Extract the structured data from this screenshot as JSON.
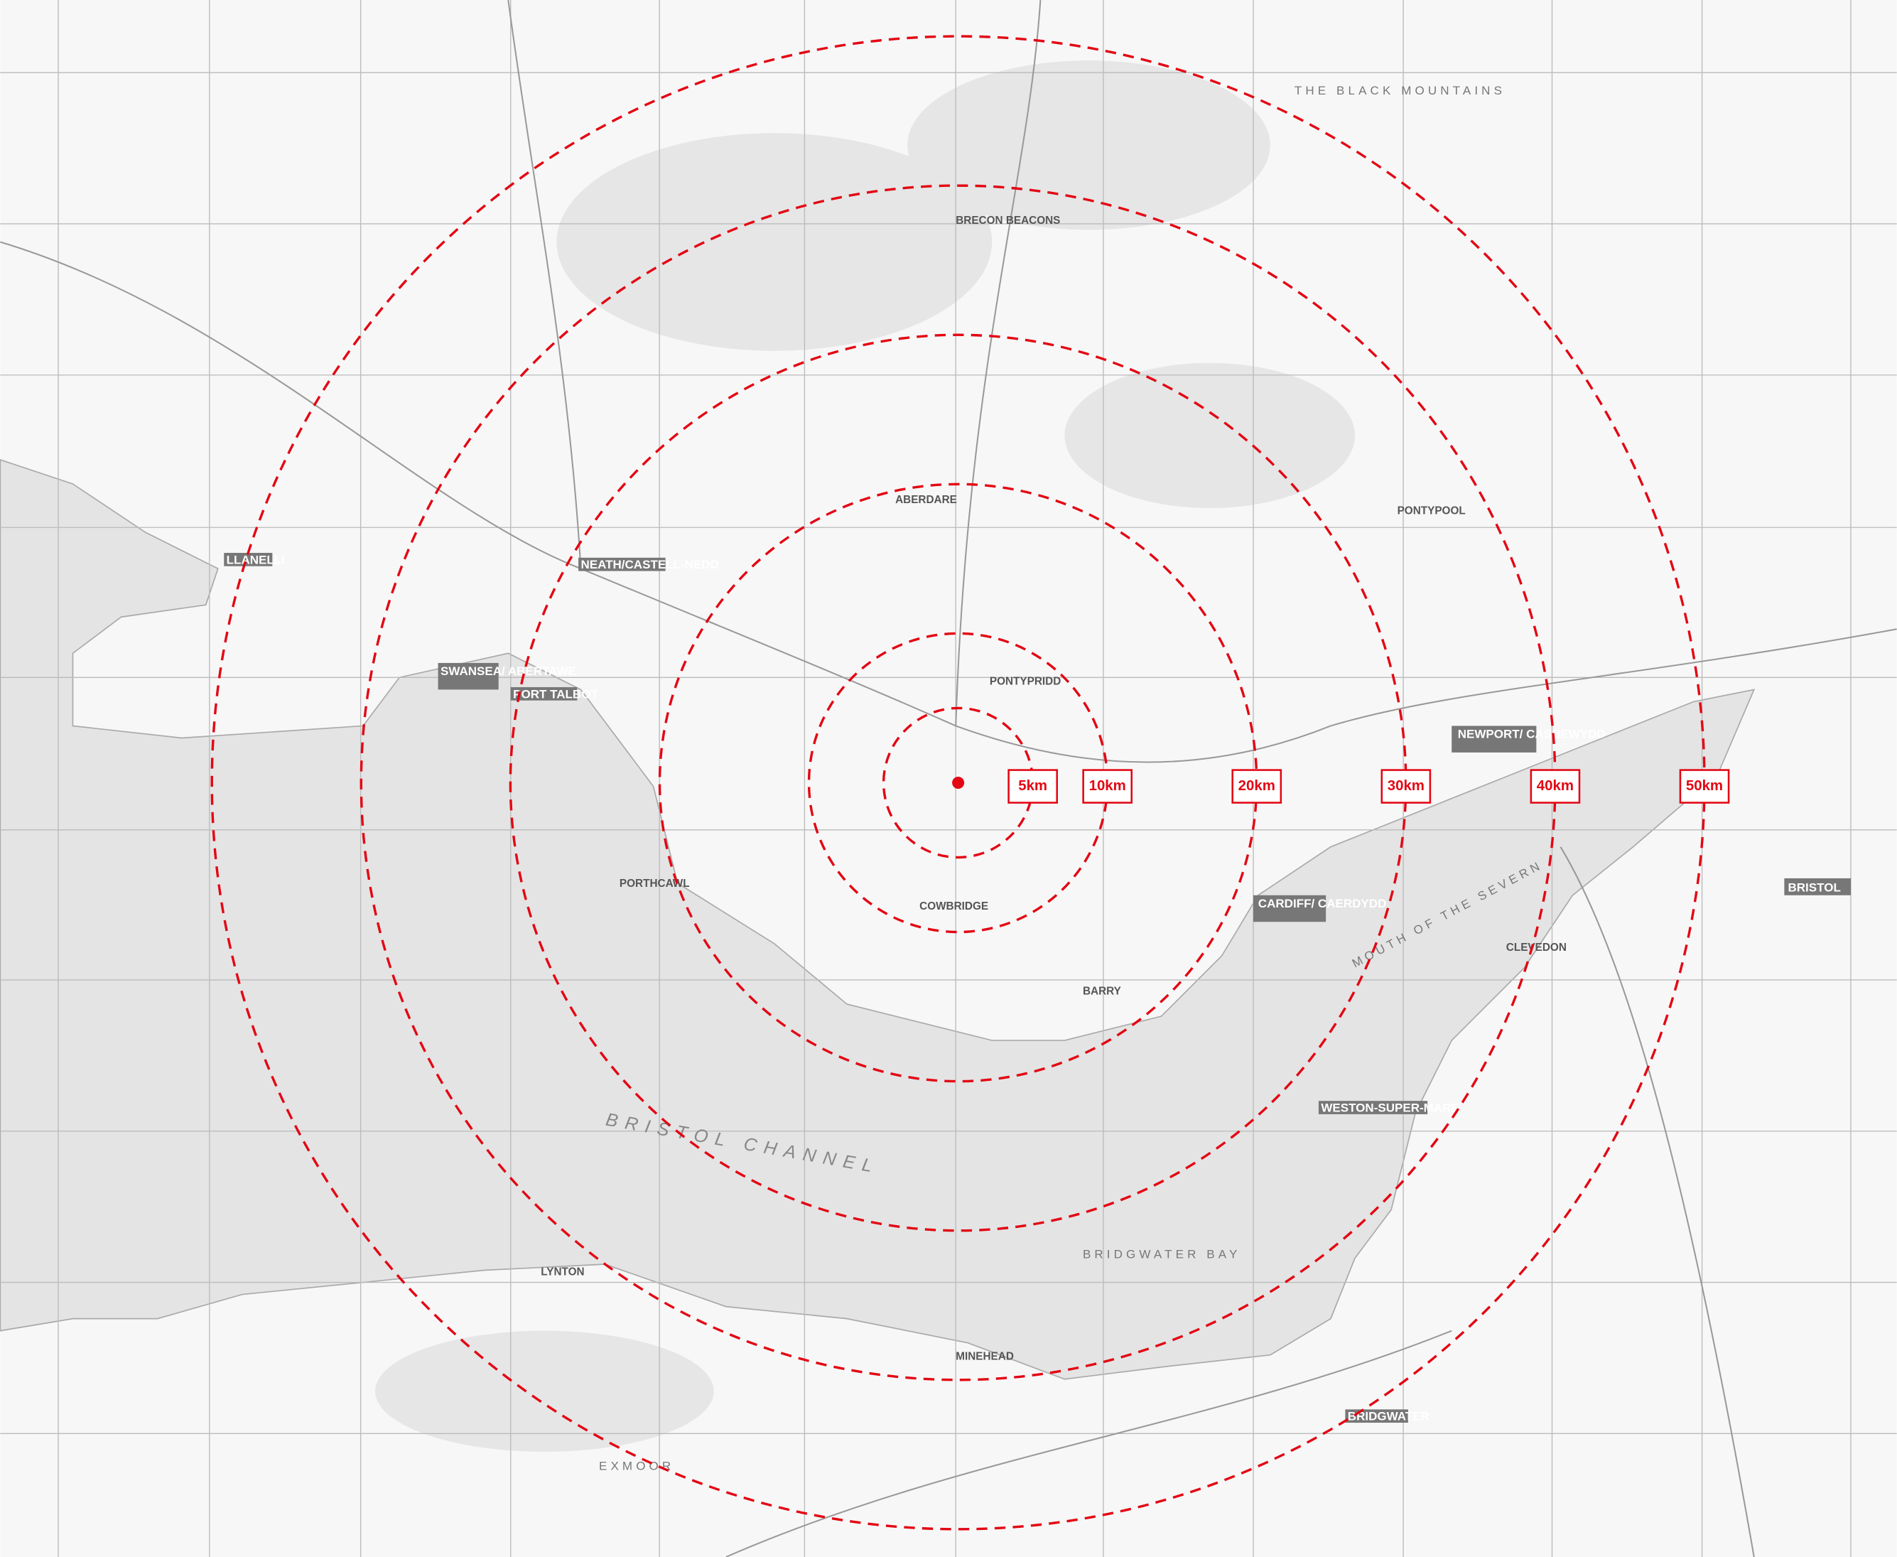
{
  "map": {
    "rings": [
      {
        "value": 5,
        "label": "5km"
      },
      {
        "value": 10,
        "label": "10km"
      },
      {
        "value": 20,
        "label": "20km"
      },
      {
        "value": 30,
        "label": "30km"
      },
      {
        "value": 40,
        "label": "40km"
      },
      {
        "value": 50,
        "label": "50km"
      }
    ],
    "places": [
      "BRISTOL CHANNEL",
      "BRIDGWATER BAY",
      "CARDIFF/ CAERDYDD",
      "SWANSEA/ ABERTAWE",
      "NEWPORT/ CASNEWYDD",
      "BRISTOL",
      "PORT TALBOT",
      "NEATH/CASTELL-NEDD",
      "WESTON-SUPER-MARE",
      "BRECON BEACONS",
      "THE BLACK MOUNTAINS",
      "EXMOOR",
      "PORTHCAWL",
      "PONTYPRIDD",
      "BARRY",
      "COWBRIDGE",
      "MOUTH OF THE SEVERN",
      "LLANELLI",
      "ABERDARE",
      "CLEVEDON",
      "MINEHEAD",
      "LYNTON",
      "BRIDGWATER",
      "PONTYPOOL"
    ]
  }
}
